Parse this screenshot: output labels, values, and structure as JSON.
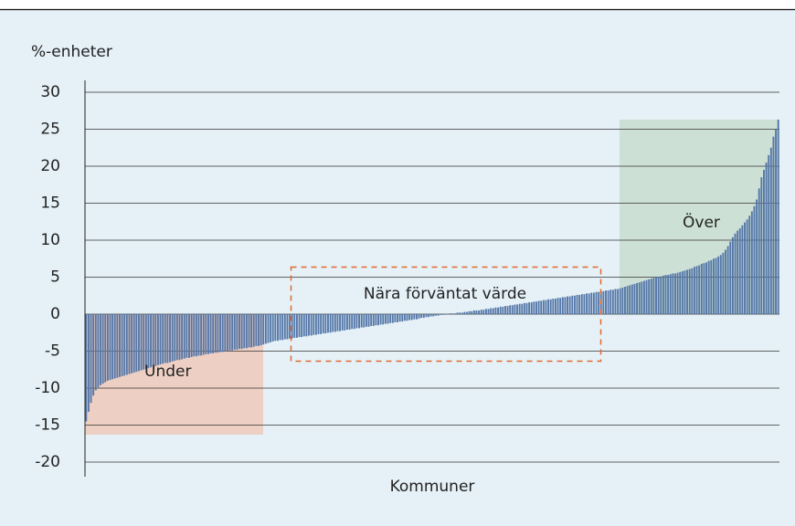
{
  "chart_data": {
    "type": "bar",
    "y_axis_label": "%-enheter",
    "x_axis_label": "Kommuner",
    "annotations": [
      "Under",
      "Nära förväntat värde",
      "Över"
    ],
    "color": "#5577a8",
    "ylim": [
      -20,
      30
    ],
    "yticks": [
      30,
      25,
      20,
      15,
      10,
      5,
      0,
      -5,
      -10,
      -15,
      -20
    ],
    "grid": true,
    "values": [
      -14.5,
      -13.2,
      -12,
      -11,
      -10.3,
      -9.9,
      -9.6,
      -9.4,
      -9.2,
      -9.0,
      -8.9,
      -8.8,
      -8.7,
      -8.6,
      -8.5,
      -8.4,
      -8.3,
      -8.2,
      -8.1,
      -8.0,
      -7.9,
      -7.8,
      -7.7,
      -7.6,
      -7.5,
      -7.4,
      -7.3,
      -7.2,
      -7.1,
      -7.0,
      -6.9,
      -6.8,
      -6.7,
      -6.6,
      -6.6,
      -6.5,
      -6.4,
      -6.3,
      -6.2,
      -6.2,
      -6.1,
      -6.0,
      -5.9,
      -5.9,
      -5.8,
      -5.7,
      -5.7,
      -5.6,
      -5.6,
      -5.5,
      -5.4,
      -5.4,
      -5.3,
      -5.3,
      -5.2,
      -5.2,
      -5.1,
      -5.1,
      -5.0,
      -5.0,
      -4.9,
      -4.9,
      -4.8,
      -4.8,
      -4.7,
      -4.7,
      -4.6,
      -4.6,
      -4.5,
      -4.5,
      -4.4,
      -4.3,
      -4.3,
      -4.2,
      -4.1,
      -4.0,
      -3.9,
      -3.8,
      -3.7,
      -3.6,
      -3.6,
      -3.5,
      -3.5,
      -3.4,
      -3.4,
      -3.3,
      -3.3,
      -3.2,
      -3.2,
      -3.1,
      -3.1,
      -3.0,
      -3.0,
      -2.9,
      -2.9,
      -2.8,
      -2.8,
      -2.7,
      -2.7,
      -2.6,
      -2.6,
      -2.5,
      -2.5,
      -2.4,
      -2.4,
      -2.3,
      -2.3,
      -2.2,
      -2.2,
      -2.1,
      -2.1,
      -2.0,
      -2.0,
      -1.9,
      -1.9,
      -1.8,
      -1.8,
      -1.7,
      -1.7,
      -1.6,
      -1.6,
      -1.5,
      -1.5,
      -1.4,
      -1.4,
      -1.3,
      -1.3,
      -1.2,
      -1.2,
      -1.1,
      -1.1,
      -1.0,
      -1.0,
      -0.9,
      -0.9,
      -0.8,
      -0.8,
      -0.7,
      -0.7,
      -0.6,
      -0.5,
      -0.5,
      -0.4,
      -0.4,
      -0.3,
      -0.3,
      -0.2,
      -0.2,
      -0.1,
      -0.1,
      0.0,
      0.0,
      0.1,
      0.1,
      0.1,
      0.2,
      0.2,
      0.2,
      0.3,
      0.3,
      0.4,
      0.4,
      0.5,
      0.5,
      0.5,
      0.6,
      0.6,
      0.7,
      0.7,
      0.8,
      0.8,
      0.9,
      0.9,
      1.0,
      1.0,
      1.1,
      1.1,
      1.2,
      1.2,
      1.3,
      1.3,
      1.4,
      1.4,
      1.5,
      1.5,
      1.6,
      1.6,
      1.7,
      1.7,
      1.8,
      1.8,
      1.9,
      1.9,
      2.0,
      2.0,
      2.1,
      2.1,
      2.2,
      2.2,
      2.3,
      2.3,
      2.4,
      2.4,
      2.5,
      2.5,
      2.6,
      2.6,
      2.7,
      2.7,
      2.8,
      2.8,
      2.9,
      2.9,
      3.0,
      3.0,
      3.1,
      3.1,
      3.2,
      3.2,
      3.3,
      3.3,
      3.4,
      3.4,
      3.5,
      3.6,
      3.7,
      3.8,
      3.9,
      4.0,
      4.1,
      4.2,
      4.3,
      4.4,
      4.5,
      4.6,
      4.7,
      4.8,
      4.9,
      5.0,
      5.0,
      5.1,
      5.2,
      5.3,
      5.3,
      5.4,
      5.5,
      5.5,
      5.6,
      5.7,
      5.8,
      5.9,
      6.0,
      6.1,
      6.2,
      6.4,
      6.5,
      6.6,
      6.8,
      6.9,
      7.0,
      7.2,
      7.3,
      7.5,
      7.6,
      7.8,
      8.0,
      8.3,
      8.7,
      9.2,
      9.8,
      10.4,
      10.9,
      11.3,
      11.6,
      12.0,
      12.4,
      12.8,
      13.3,
      13.9,
      14.6,
      15.5,
      17.0,
      18.5,
      19.5,
      20.5,
      21.5,
      22.5,
      24.0,
      25.0,
      26.3
    ]
  }
}
